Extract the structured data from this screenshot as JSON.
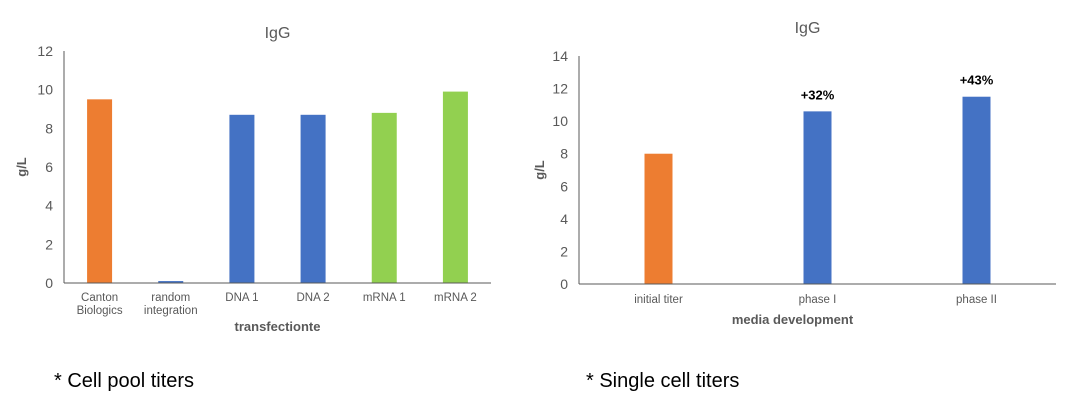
{
  "chart_data": [
    {
      "type": "bar",
      "title": "IgG",
      "xlabel": "transfectionte",
      "ylabel": "g/L",
      "ylim": [
        0,
        12
      ],
      "yticks": [
        0,
        2,
        4,
        6,
        8,
        10,
        12
      ],
      "grid": false,
      "categories": [
        [
          "Canton",
          "Biologics"
        ],
        [
          "random",
          "integration"
        ],
        [
          "DNA 1"
        ],
        [
          "DNA 2"
        ],
        [
          "mRNA 1"
        ],
        [
          "mRNA 2"
        ]
      ],
      "values": [
        9.5,
        0.1,
        8.7,
        8.7,
        8.8,
        9.9
      ],
      "colors": [
        "#ED7D31",
        "#4472C4",
        "#4472C4",
        "#4472C4",
        "#92D050",
        "#92D050"
      ]
    },
    {
      "type": "bar",
      "title": "IgG",
      "xlabel": "media development",
      "ylabel": "g/L",
      "ylim": [
        0,
        14
      ],
      "yticks": [
        0,
        2,
        4,
        6,
        8,
        10,
        12,
        14
      ],
      "grid": false,
      "categories": [
        [
          "initial titer"
        ],
        [
          "phase I"
        ],
        [
          "phase II"
        ]
      ],
      "values": [
        8.0,
        10.6,
        11.5
      ],
      "data_labels": [
        "",
        "+32%",
        "+43%"
      ],
      "colors": [
        "#ED7D31",
        "#4472C4",
        "#4472C4"
      ]
    }
  ],
  "captions": [
    "* Cell pool titers",
    "* Single cell titers"
  ]
}
